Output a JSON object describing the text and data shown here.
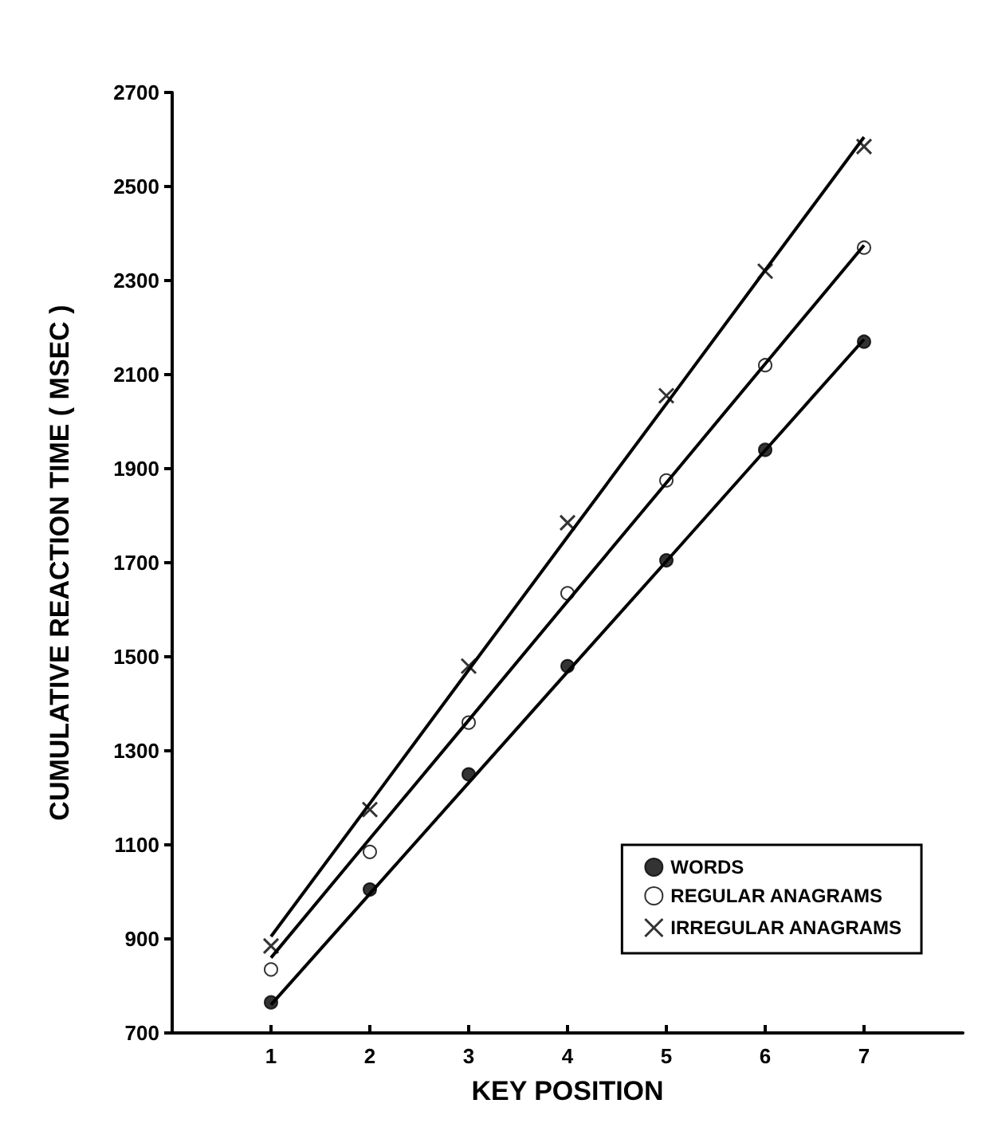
{
  "chart_data": {
    "type": "scatter",
    "xlabel": "KEY POSITION",
    "ylabel": "CUMULATIVE REACTION TIME ( MSEC )",
    "x": [
      1,
      2,
      3,
      4,
      5,
      6,
      7
    ],
    "series": [
      {
        "name": "WORDS",
        "color": "#000000",
        "marker": "circle",
        "values": [
          765,
          1005,
          1250,
          1480,
          1705,
          1940,
          2170
        ]
      },
      {
        "name": "REGULAR ANAGRAMS",
        "color": "#ffffff",
        "marker": "circle",
        "values": [
          835,
          1085,
          1360,
          1635,
          1875,
          2120,
          2370
        ]
      },
      {
        "name": "IRREGULAR ANAGRAMS",
        "color": "#000000",
        "marker": "cross",
        "values": [
          885,
          1175,
          1480,
          1785,
          2055,
          2320,
          2585
        ]
      },
      {
        "type": "line",
        "color": "#000000",
        "marker": "none",
        "values": [
          760,
          996,
          1232,
          1468,
          1703,
          1939,
          2175
        ]
      },
      {
        "type": "line",
        "color": "#000000",
        "marker": "none",
        "values": [
          860,
          1113,
          1365,
          1618,
          1870,
          2123,
          2375
        ]
      },
      {
        "type": "line",
        "color": "#000000",
        "marker": "none",
        "values": [
          905,
          1188,
          1472,
          1755,
          2038,
          2322,
          2605
        ]
      }
    ],
    "xlim": [
      0,
      8
    ],
    "xticks": [
      1,
      2,
      3,
      4,
      5,
      6,
      7
    ],
    "ylim": [
      700,
      2700
    ],
    "yticks": [
      700,
      900,
      1100,
      1300,
      1500,
      1700,
      1900,
      2100,
      2300,
      2500,
      2700
    ],
    "grid": false,
    "legend": "bottom right"
  }
}
